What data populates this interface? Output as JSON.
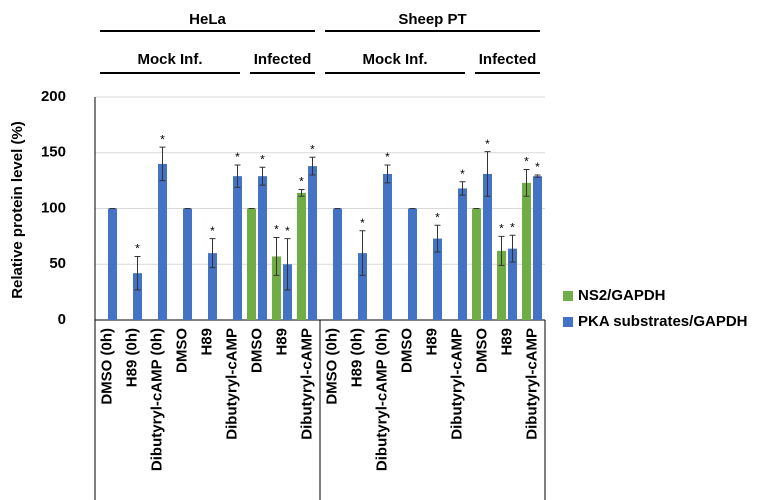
{
  "chart_data": {
    "type": "bar",
    "ylabel": "Relative protein level (%)",
    "categories": [
      "DMSO (0h)",
      "H89 (0h)",
      "Dibutyryl-cAMP (0h)",
      "DMSO",
      "H89",
      "Dibutyryl-cAMP",
      "DMSO",
      "H89",
      "Dibutyryl-cAMP",
      "DMSO (0h)",
      "H89 (0h)",
      "Dibutyryl-cAMP (0h)",
      "DMSO",
      "H89",
      "Dibutyryl-cAMP",
      "DMSO",
      "H89",
      "Dibutyryl-cAMP"
    ],
    "groups": [
      {
        "label": "HeLa",
        "span": [
          0,
          8
        ]
      },
      {
        "label": "Sheep PT",
        "span": [
          9,
          17
        ]
      }
    ],
    "subgroups": [
      {
        "label": "Mock Inf.",
        "span": [
          0,
          5
        ]
      },
      {
        "label": "Infected",
        "span": [
          6,
          8
        ]
      },
      {
        "label": "Mock Inf.",
        "span": [
          9,
          14
        ]
      },
      {
        "label": "Infected",
        "span": [
          15,
          17
        ]
      }
    ],
    "series": [
      {
        "name": "NS2/GAPDH",
        "color": "#70ad47",
        "values": [
          null,
          null,
          null,
          null,
          null,
          null,
          100,
          57,
          114,
          null,
          null,
          null,
          null,
          null,
          null,
          100,
          62,
          123
        ],
        "errors": [
          null,
          null,
          null,
          null,
          null,
          null,
          0,
          17,
          3,
          null,
          null,
          null,
          null,
          null,
          null,
          0,
          13,
          12
        ],
        "significance": [
          null,
          null,
          null,
          null,
          null,
          null,
          null,
          "*",
          "*",
          null,
          null,
          null,
          null,
          null,
          null,
          null,
          "*",
          "*"
        ]
      },
      {
        "name": "PKA substrates/GAPDH",
        "color": "#4472c4",
        "values": [
          100,
          42,
          140,
          100,
          60,
          129,
          129,
          50,
          138,
          100,
          60,
          131,
          100,
          73,
          118,
          131,
          64,
          129
        ],
        "errors": [
          0,
          15,
          15,
          0,
          13,
          10,
          8,
          23,
          8,
          0,
          20,
          8,
          0,
          12,
          6,
          20,
          12,
          1
        ],
        "significance": [
          null,
          "*",
          "*",
          null,
          "*",
          "*",
          "*",
          "*",
          "*",
          null,
          "*",
          "*",
          null,
          "*",
          "*",
          "*",
          "*",
          "*"
        ]
      }
    ],
    "ylim": [
      0,
      200
    ],
    "yticks": [
      0,
      50,
      100,
      150,
      200
    ],
    "grid": true
  }
}
